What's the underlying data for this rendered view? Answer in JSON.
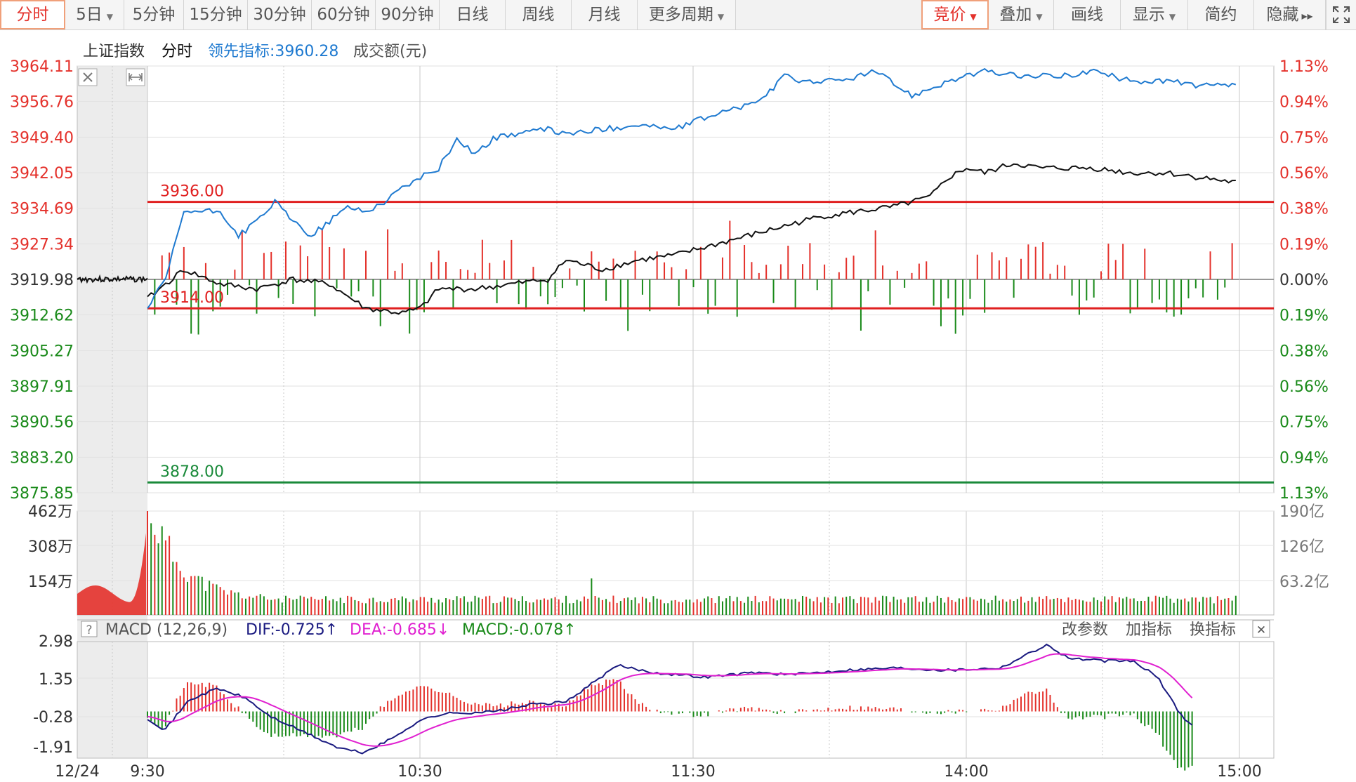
{
  "toolbar": {
    "periods": [
      {
        "label": "分时",
        "caret": false,
        "active": true
      },
      {
        "label": "5日",
        "caret": true,
        "active": false
      },
      {
        "label": "5分钟",
        "caret": false,
        "active": false
      },
      {
        "label": "15分钟",
        "caret": false,
        "active": false
      },
      {
        "label": "30分钟",
        "caret": false,
        "active": false
      },
      {
        "label": "60分钟",
        "caret": false,
        "active": false
      },
      {
        "label": "90分钟",
        "caret": false,
        "active": false
      },
      {
        "label": "日线",
        "caret": false,
        "active": false
      },
      {
        "label": "周线",
        "caret": false,
        "active": false
      },
      {
        "label": "月线",
        "caret": false,
        "active": false
      },
      {
        "label": "更多周期",
        "caret": true,
        "active": false
      }
    ],
    "tools": [
      {
        "label": "竞价",
        "caret": true,
        "active": true
      },
      {
        "label": "叠加",
        "caret": true,
        "active": false
      },
      {
        "label": "画线",
        "caret": false,
        "active": false
      },
      {
        "label": "显示",
        "caret": true,
        "active": false
      },
      {
        "label": "简约",
        "caret": false,
        "active": false
      },
      {
        "label": "隐藏",
        "caret": false,
        "active": false,
        "suffix": "▸▸"
      }
    ],
    "fullscreen_icon": "fullscreen-icon"
  },
  "header": {
    "index_name": "上证指数",
    "mode": "分时",
    "leading_label": "领先指标:3960.28",
    "volume_unit": "成交额(元)"
  },
  "colors": {
    "up": "#e4312b",
    "down": "#1a8a1a",
    "leading": "#1f7ad0",
    "price": "#111111",
    "dif": "#1a1a80",
    "dea": "#e020d0",
    "grid": "#c8c8c8"
  },
  "axes": {
    "price_ticks": [
      "3964.11",
      "3956.76",
      "3949.40",
      "3942.05",
      "3934.69",
      "3927.34",
      "3919.98",
      "3912.62",
      "3905.27",
      "3897.91",
      "3890.56",
      "3883.20",
      "3875.85"
    ],
    "pct_ticks": [
      "1.13%",
      "0.94%",
      "0.75%",
      "0.56%",
      "0.38%",
      "0.19%",
      "0.00%",
      "0.19%",
      "0.38%",
      "0.56%",
      "0.75%",
      "0.94%",
      "1.13%"
    ],
    "vol_left_ticks": [
      "462万",
      "308万",
      "154万"
    ],
    "vol_right_ticks": [
      "190亿",
      "126亿",
      "63.2亿"
    ],
    "macd_ticks": [
      "2.98",
      "1.35",
      "-0.28",
      "-1.91"
    ],
    "time_labels": [
      "12/24",
      "9:30",
      "10:30",
      "11:30",
      "14:00",
      "15:00"
    ]
  },
  "levels": {
    "resistance": "3936.00",
    "support": "3914.00",
    "target": "3878.00"
  },
  "macd": {
    "title": "MACD (12,26,9)",
    "dif": "DIF:-0.725↑",
    "dea": "DEA:-0.685↓",
    "macd": "MACD:-0.078↑",
    "buttons": [
      "改参数",
      "加指标",
      "换指标"
    ],
    "help_icon": "?",
    "close_icon": "✕"
  },
  "chart_data": {
    "type": "line",
    "x_labels": [
      "9:30",
      "10:30",
      "11:30",
      "13:00/14:00",
      "15:00"
    ],
    "prev_close": 3919.98,
    "ylim": [
      3875.85,
      3964.11
    ],
    "series": [
      {
        "name": "上证指数",
        "points": [
          [
            0,
            3916
          ],
          [
            5,
            3919
          ],
          [
            10,
            3922
          ],
          [
            20,
            3919
          ],
          [
            30,
            3918
          ],
          [
            40,
            3920
          ],
          [
            50,
            3919
          ],
          [
            60,
            3914
          ],
          [
            70,
            3913
          ],
          [
            75,
            3914
          ],
          [
            80,
            3918
          ],
          [
            90,
            3918
          ],
          [
            100,
            3919
          ],
          [
            110,
            3920
          ],
          [
            115,
            3924
          ],
          [
            125,
            3922
          ],
          [
            135,
            3924
          ],
          [
            145,
            3925
          ],
          [
            155,
            3927
          ],
          [
            165,
            3929
          ],
          [
            175,
            3931
          ],
          [
            185,
            3933
          ],
          [
            195,
            3934
          ],
          [
            205,
            3935
          ],
          [
            215,
            3937
          ],
          [
            220,
            3941
          ],
          [
            225,
            3943
          ],
          [
            230,
            3942
          ],
          [
            238,
            3944
          ],
          [
            245,
            3943
          ],
          [
            250,
            3943
          ],
          [
            260,
            3943
          ],
          [
            270,
            3942
          ],
          [
            280,
            3942
          ],
          [
            290,
            3941
          ],
          [
            299,
            3940
          ]
        ]
      },
      {
        "name": "领先指标",
        "points": [
          [
            0,
            3914
          ],
          [
            5,
            3920
          ],
          [
            10,
            3934
          ],
          [
            20,
            3934
          ],
          [
            25,
            3929
          ],
          [
            30,
            3932
          ],
          [
            35,
            3936
          ],
          [
            40,
            3932
          ],
          [
            45,
            3929
          ],
          [
            50,
            3932
          ],
          [
            55,
            3935
          ],
          [
            60,
            3934
          ],
          [
            65,
            3936
          ],
          [
            70,
            3939
          ],
          [
            75,
            3941
          ],
          [
            80,
            3943
          ],
          [
            85,
            3949
          ],
          [
            90,
            3946
          ],
          [
            95,
            3949
          ],
          [
            100,
            3950
          ],
          [
            110,
            3951
          ],
          [
            115,
            3950
          ],
          [
            125,
            3951
          ],
          [
            135,
            3952
          ],
          [
            145,
            3951
          ],
          [
            155,
            3954
          ],
          [
            165,
            3956
          ],
          [
            170,
            3958
          ],
          [
            175,
            3962
          ],
          [
            180,
            3961
          ],
          [
            190,
            3961
          ],
          [
            200,
            3963
          ],
          [
            210,
            3958
          ],
          [
            220,
            3961
          ],
          [
            230,
            3963
          ],
          [
            240,
            3962
          ],
          [
            250,
            3962
          ],
          [
            260,
            3963
          ],
          [
            270,
            3961
          ],
          [
            280,
            3961
          ],
          [
            290,
            3960
          ],
          [
            299,
            3960
          ]
        ]
      }
    ],
    "volume": {
      "max_wan": 462
    },
    "macd": {
      "ylim": [
        -1.91,
        2.98
      ]
    }
  }
}
